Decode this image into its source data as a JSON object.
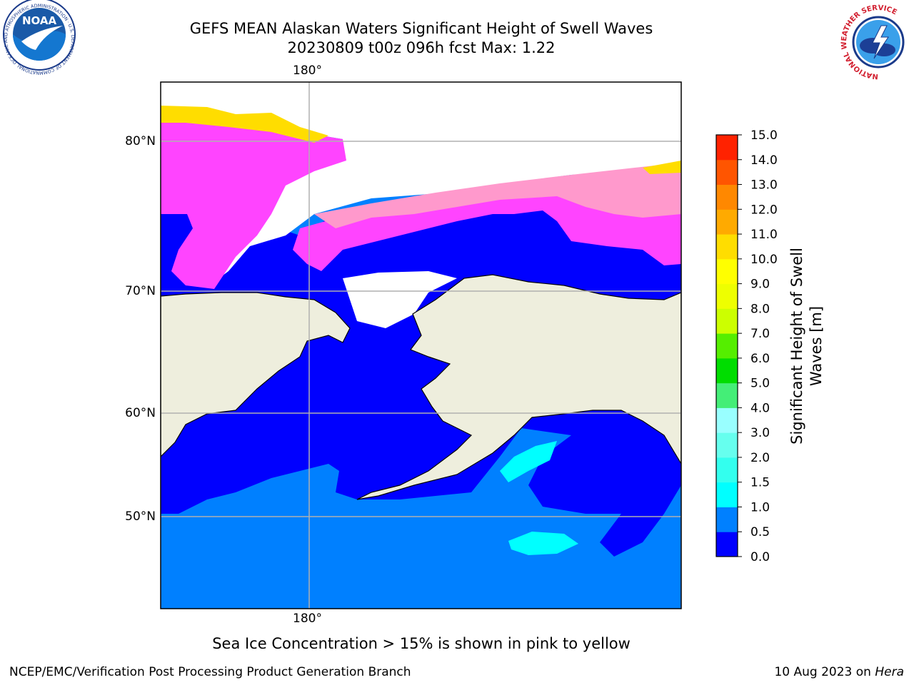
{
  "title": {
    "line1": "GEFS MEAN Alaskan Waters Significant Height of Swell Waves",
    "line2": "20230809 t00z 096h fcst   Max: 1.22"
  },
  "map": {
    "lon_label_top": "180°",
    "lon_label_bottom": "180°",
    "lat_labels": [
      "80°N",
      "70°N",
      "60°N",
      "50°N"
    ],
    "colors": {
      "land": "#eeeedd",
      "sea_0_0p5": "#0000ff",
      "sea_0p5_1": "#0080ff",
      "sea_1_1p5": "#00ffff",
      "ice_pink": "#ff44ff",
      "ice_light": "#ff99cc",
      "ice_yellow": "#ffdd00",
      "grid": "#b0b0b0"
    }
  },
  "colorbar": {
    "label": "Significant Height of Swell Waves [m]",
    "ticks": [
      "0.0",
      "0.5",
      "1.0",
      "1.5",
      "2.0",
      "3.0",
      "4.0",
      "5.0",
      "6.0",
      "7.0",
      "8.0",
      "9.0",
      "10.0",
      "11.0",
      "12.0",
      "13.0",
      "14.0",
      "15.0"
    ],
    "colors": [
      "#0000ff",
      "#0080ff",
      "#00ffff",
      "#33ffee",
      "#66ffee",
      "#99ffff",
      "#44ee77",
      "#00dd00",
      "#55ee00",
      "#ccff00",
      "#eeff00",
      "#ffff00",
      "#ffdd00",
      "#ffaa00",
      "#ff8800",
      "#ff5500",
      "#ff2200",
      "#ff0000"
    ]
  },
  "logos": {
    "noaa_text": "NOAA",
    "noaa_ring_text": "NATIONAL OCEANIC AND ATMOSPHERIC ADMINISTRATION · U.S. DEPARTMENT OF COMMERCE",
    "nws_ring_text": "NATIONAL WEATHER SERVICE"
  },
  "caption": "Sea Ice Concentration > 15% is shown in pink to yellow",
  "footer": {
    "left": "NCEP/EMC/Verification Post Processing Product Generation Branch",
    "right_date": "10 Aug 2023 on ",
    "right_host": "Hera"
  }
}
